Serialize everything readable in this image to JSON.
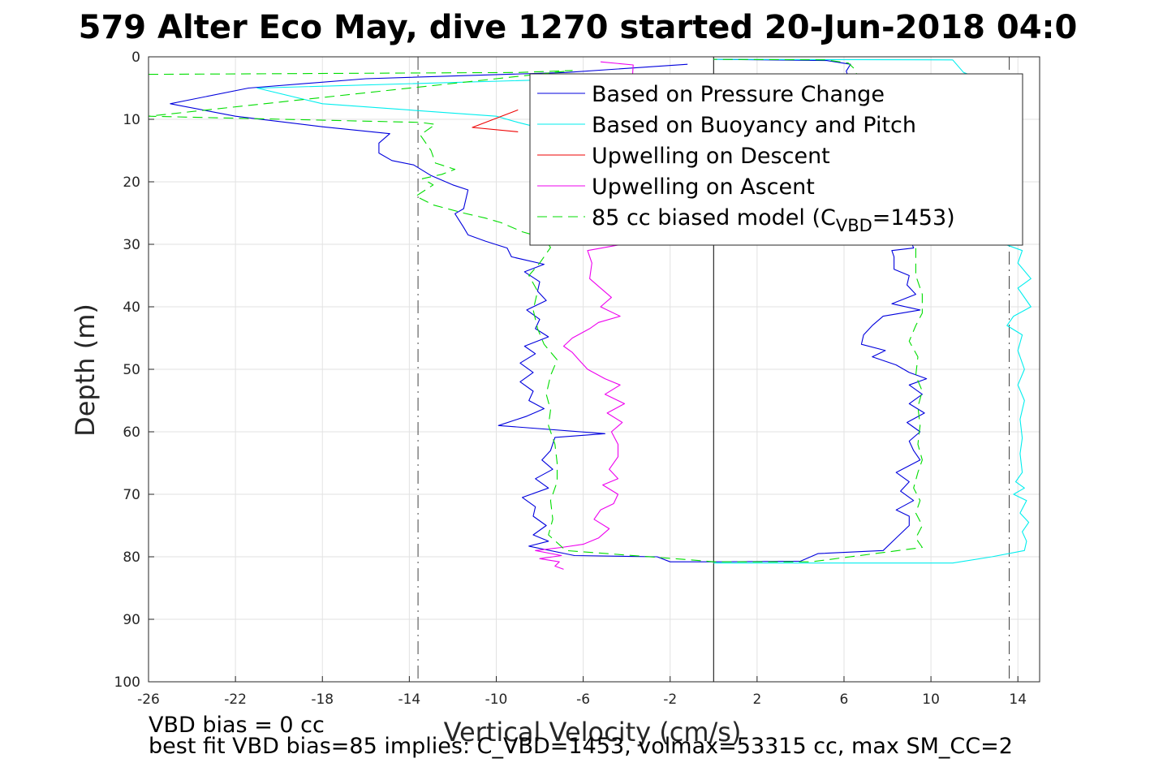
{
  "colors": {
    "pressure": "#0000dd",
    "buoyancy": "#00eeee",
    "descent": "#ee0000",
    "ascent": "#ee00ee",
    "model": "#00dd00",
    "vlines": "#000000"
  },
  "chart_data": {
    "type": "line",
    "title": "579 Alter Eco May, dive 1270 started 20-Jun-2018 04:0",
    "xlabel": "Vertical Velocity (cm/s)",
    "ylabel": "Depth (m)",
    "xlim": [
      -26,
      15
    ],
    "ylim": [
      0,
      100
    ],
    "y_reversed": true,
    "grid": true,
    "legend_position": "top-right",
    "xticks": [
      "-26",
      "-22",
      "-18",
      "-14",
      "-10",
      "-6",
      "-2",
      "2",
      "6",
      "10",
      "14"
    ],
    "xtick_values": [
      -26,
      -22,
      -18,
      -14,
      -10,
      -6,
      -2,
      2,
      6,
      10,
      14
    ],
    "yticks": [
      "0",
      "10",
      "20",
      "30",
      "40",
      "50",
      "60",
      "70",
      "80",
      "90",
      "100"
    ],
    "ytick_values": [
      0,
      10,
      20,
      30,
      40,
      50,
      60,
      70,
      80,
      90,
      100
    ],
    "reference_lines": [
      {
        "x": -13.6,
        "style": "dash-dot"
      },
      {
        "x": 0,
        "style": "solid"
      },
      {
        "x": 13.6,
        "style": "dash-dot"
      }
    ],
    "series": [
      {
        "name": "Based on Pressure Change",
        "color_key": "pressure",
        "style": "solid",
        "points": [
          [
            -1.2,
            1.2
          ],
          [
            -6.8,
            2.5
          ],
          [
            -16,
            3.5
          ],
          [
            -21.4,
            5.0
          ],
          [
            -25,
            7.5
          ],
          [
            -22,
            9.5
          ],
          [
            -18,
            11.2
          ],
          [
            -14.9,
            12.3
          ],
          [
            -15.4,
            13.8
          ],
          [
            -15.4,
            15.4
          ],
          [
            -14.8,
            16.6
          ],
          [
            -13.8,
            17.3
          ],
          [
            -13.0,
            19.0
          ],
          [
            -12.0,
            20.5
          ],
          [
            -11.3,
            21.3
          ],
          [
            -11.5,
            24.3
          ],
          [
            -11.9,
            25.1
          ],
          [
            -11.5,
            27.3
          ],
          [
            -11.3,
            28.5
          ],
          [
            -10.5,
            29.5
          ],
          [
            -9.5,
            30.6
          ],
          [
            -9.3,
            32.0
          ],
          [
            -7.8,
            33.2
          ],
          [
            -8.7,
            34.4
          ],
          [
            -8.0,
            36.0
          ],
          [
            -8.1,
            37.5
          ],
          [
            -7.7,
            39.0
          ],
          [
            -8.6,
            40.5
          ],
          [
            -8.0,
            42.0
          ],
          [
            -8.2,
            43.5
          ],
          [
            -7.6,
            44.8
          ],
          [
            -8.7,
            46.3
          ],
          [
            -8.2,
            47.5
          ],
          [
            -8.9,
            49.0
          ],
          [
            -8.3,
            50.5
          ],
          [
            -8.9,
            52.0
          ],
          [
            -8.3,
            53.5
          ],
          [
            -8.5,
            55.0
          ],
          [
            -7.8,
            56.3
          ],
          [
            -8.6,
            57.5
          ],
          [
            -9.9,
            59.0
          ],
          [
            -5.0,
            60.3
          ],
          [
            -7.3,
            60.9
          ],
          [
            -7.5,
            63.0
          ],
          [
            -7.9,
            64.5
          ],
          [
            -7.4,
            66.0
          ],
          [
            -8.2,
            67.5
          ],
          [
            -7.6,
            69.0
          ],
          [
            -8.8,
            70.5
          ],
          [
            -8.2,
            72.0
          ],
          [
            -8.3,
            73.5
          ],
          [
            -7.7,
            75.0
          ],
          [
            -8.3,
            76.5
          ],
          [
            -7.6,
            77.5
          ],
          [
            -8.5,
            78.3
          ],
          [
            -6.4,
            79.8
          ],
          [
            -2.6,
            80.0
          ],
          [
            -2.0,
            80.8
          ],
          [
            0,
            80.8
          ],
          [
            4.0,
            80.7
          ],
          [
            4.8,
            79.5
          ],
          [
            7.8,
            79.0
          ],
          [
            8.4,
            77.0
          ],
          [
            9.0,
            75.0
          ],
          [
            9.0,
            73.5
          ],
          [
            8.4,
            72.5
          ],
          [
            9.2,
            71.0
          ],
          [
            8.6,
            69.5
          ],
          [
            9.0,
            68.0
          ],
          [
            8.4,
            66.5
          ],
          [
            9.5,
            64.5
          ],
          [
            9.2,
            63.0
          ],
          [
            9.0,
            61.5
          ],
          [
            9.5,
            60.0
          ],
          [
            8.9,
            58.5
          ],
          [
            9.7,
            57.0
          ],
          [
            9.0,
            55.5
          ],
          [
            9.6,
            54.0
          ],
          [
            9.0,
            52.5
          ],
          [
            9.8,
            51.5
          ],
          [
            9.0,
            50.5
          ],
          [
            8.4,
            49.3
          ],
          [
            7.3,
            48.0
          ],
          [
            7.9,
            47.0
          ],
          [
            6.8,
            46.0
          ],
          [
            6.9,
            44.5
          ],
          [
            7.3,
            43.0
          ],
          [
            7.8,
            41.5
          ],
          [
            9.5,
            40.5
          ],
          [
            8.2,
            39.5
          ],
          [
            9.3,
            38.0
          ],
          [
            8.9,
            36.5
          ],
          [
            9.0,
            35.0
          ],
          [
            8.3,
            34.0
          ],
          [
            8.3,
            32.0
          ],
          [
            8.2,
            31.0
          ],
          [
            9.2,
            30.6
          ],
          [
            6.1,
            2.3
          ],
          [
            6.3,
            1.2
          ],
          [
            5.2,
            0.6
          ],
          [
            0,
            0.4
          ]
        ]
      },
      {
        "name": "Based on Buoyancy and Pitch",
        "color_key": "buoyancy",
        "style": "solid",
        "points": [
          [
            0,
            0.4
          ],
          [
            11.0,
            0.5
          ],
          [
            11.5,
            2.5
          ],
          [
            12.5,
            3.8
          ],
          [
            11.0,
            4.5
          ],
          [
            -2,
            4.5
          ],
          [
            -6,
            3.5
          ],
          [
            -21.0,
            5.0
          ],
          [
            -18.0,
            7.5
          ],
          [
            -10.0,
            9.5
          ],
          [
            -9.0,
            10.5
          ],
          [
            13.0,
            29.5
          ],
          [
            14.2,
            31.0
          ],
          [
            14.0,
            33.0
          ],
          [
            14.6,
            35.5
          ],
          [
            14.0,
            37.0
          ],
          [
            14.6,
            40.0
          ],
          [
            13.8,
            41.5
          ],
          [
            13.5,
            43.0
          ],
          [
            14.2,
            44.5
          ],
          [
            14.0,
            47.0
          ],
          [
            14.3,
            50.0
          ],
          [
            14.0,
            52.5
          ],
          [
            14.3,
            55.0
          ],
          [
            14.1,
            58.0
          ],
          [
            14.2,
            61.0
          ],
          [
            14.1,
            63.5
          ],
          [
            14.2,
            66.5
          ],
          [
            13.9,
            68.0
          ],
          [
            14.3,
            69.0
          ],
          [
            13.8,
            70.0
          ],
          [
            14.4,
            71.0
          ],
          [
            14.1,
            73.0
          ],
          [
            14.5,
            74.5
          ],
          [
            14.2,
            76.0
          ],
          [
            14.4,
            77.5
          ],
          [
            14.3,
            79.0
          ],
          [
            12.8,
            80.0
          ],
          [
            11.0,
            81.0
          ],
          [
            6.0,
            81.0
          ],
          [
            0,
            81.0
          ]
        ]
      },
      {
        "name": "Upwelling on Descent",
        "color_key": "descent",
        "style": "solid",
        "points": [
          [
            -9.0,
            8.5
          ],
          [
            -11.1,
            11.3
          ],
          [
            -9.0,
            12.0
          ]
        ]
      },
      {
        "name": "Upwelling on Ascent",
        "color_key": "ascent",
        "style": "solid",
        "points": [
          [
            -5.2,
            0.8
          ],
          [
            -3.7,
            1.3
          ],
          [
            -4.2,
            30.0
          ],
          [
            -5.8,
            31.0
          ],
          [
            -5.6,
            33.0
          ],
          [
            -5.7,
            35.5
          ],
          [
            -5.2,
            37.0
          ],
          [
            -4.7,
            38.5
          ],
          [
            -5.2,
            40.0
          ],
          [
            -4.3,
            41.5
          ],
          [
            -5.3,
            42.5
          ],
          [
            -5.7,
            43.5
          ],
          [
            -6.5,
            45.0
          ],
          [
            -6.9,
            46.3
          ],
          [
            -6.5,
            47.3
          ],
          [
            -6.2,
            48.5
          ],
          [
            -5.8,
            50.0
          ],
          [
            -5.0,
            51.5
          ],
          [
            -4.3,
            52.5
          ],
          [
            -5.0,
            54.0
          ],
          [
            -4.1,
            55.5
          ],
          [
            -4.9,
            57.0
          ],
          [
            -4.2,
            58.5
          ],
          [
            -4.7,
            60.0
          ],
          [
            -4.4,
            62.0
          ],
          [
            -4.4,
            64.0
          ],
          [
            -4.8,
            66.0
          ],
          [
            -4.4,
            67.5
          ],
          [
            -5.1,
            68.5
          ],
          [
            -4.4,
            70.0
          ],
          [
            -4.6,
            71.5
          ],
          [
            -5.2,
            72.5
          ],
          [
            -5.5,
            74.0
          ],
          [
            -4.8,
            75.5
          ],
          [
            -5.3,
            77.0
          ],
          [
            -6.0,
            78.0
          ],
          [
            -7.0,
            78.5
          ],
          [
            -8.2,
            79.0
          ],
          [
            -7.0,
            79.8
          ],
          [
            -8.0,
            80.3
          ],
          [
            -7.1,
            80.8
          ],
          [
            -7.3,
            81.5
          ],
          [
            -6.9,
            82.0
          ]
        ]
      },
      {
        "name": "85 cc biased model (C_VBD=1453)",
        "color_key": "model",
        "style": "dash",
        "points": [
          [
            -26,
            2.8
          ],
          [
            -9.0,
            2.5
          ],
          [
            -6.5,
            2.2
          ],
          [
            -26,
            9.5
          ],
          [
            -13.5,
            10.5
          ],
          [
            -12.8,
            10.8
          ],
          [
            -13.5,
            12.5
          ],
          [
            -13.0,
            15.0
          ],
          [
            -12.8,
            17.0
          ],
          [
            -11.9,
            18.0
          ],
          [
            -12.5,
            18.8
          ],
          [
            -13.4,
            19.5
          ],
          [
            -12.9,
            20.5
          ],
          [
            -13.7,
            22.3
          ],
          [
            -12.9,
            23.7
          ],
          [
            -11.5,
            25.0
          ],
          [
            -10.5,
            25.8
          ],
          [
            -9.8,
            26.5
          ],
          [
            -8.8,
            28.0
          ],
          [
            -7.8,
            29.0
          ],
          [
            -7.5,
            30.5
          ],
          [
            -8.0,
            33.0
          ],
          [
            -8.5,
            35.0
          ],
          [
            -8.1,
            37.5
          ],
          [
            -8.3,
            40.5
          ],
          [
            -8.1,
            43.5
          ],
          [
            -7.8,
            46.0
          ],
          [
            -7.2,
            48.5
          ],
          [
            -7.5,
            51.0
          ],
          [
            -7.7,
            54.0
          ],
          [
            -7.5,
            56.5
          ],
          [
            -7.6,
            59.0
          ],
          [
            -7.3,
            62.0
          ],
          [
            -7.2,
            65.0
          ],
          [
            -7.2,
            68.0
          ],
          [
            -7.5,
            71.0
          ],
          [
            -7.4,
            74.0
          ],
          [
            -7.6,
            76.5
          ],
          [
            -6.8,
            79.0
          ],
          [
            -1.0,
            80.5
          ],
          [
            0,
            80.8
          ],
          [
            4.5,
            80.8
          ],
          [
            9.6,
            78.5
          ],
          [
            9.3,
            77.0
          ],
          [
            9.6,
            75.0
          ],
          [
            9.3,
            73.0
          ],
          [
            9.5,
            71.0
          ],
          [
            9.2,
            69.0
          ],
          [
            9.4,
            66.5
          ],
          [
            9.6,
            64.5
          ],
          [
            9.4,
            62.0
          ],
          [
            9.5,
            59.0
          ],
          [
            9.4,
            56.0
          ],
          [
            9.6,
            53.5
          ],
          [
            9.3,
            51.0
          ],
          [
            9.4,
            48.0
          ],
          [
            9.0,
            45.5
          ],
          [
            9.3,
            43.0
          ],
          [
            9.6,
            41.0
          ],
          [
            9.6,
            38.0
          ],
          [
            9.3,
            35.0
          ],
          [
            9.3,
            32.5
          ],
          [
            9.3,
            30.0
          ],
          [
            6.5,
            2.0
          ],
          [
            6.2,
            1.0
          ],
          [
            5.2,
            0.5
          ],
          [
            0,
            0.4
          ]
        ]
      }
    ],
    "legend_entries": [
      {
        "text": "Based on Pressure Change",
        "color_key": "pressure",
        "style": "solid"
      },
      {
        "text": "Based on Buoyancy and Pitch",
        "color_key": "buoyancy",
        "style": "solid"
      },
      {
        "text": "Upwelling on Descent",
        "color_key": "descent",
        "style": "solid"
      },
      {
        "text": "Upwelling on Ascent",
        "color_key": "ascent",
        "style": "solid"
      },
      {
        "text_main": "85 cc biased model (C",
        "text_sub": "VBD",
        "text_end": "=1453)",
        "color_key": "model",
        "style": "dash"
      }
    ],
    "annotations": [
      "VBD bias = 0 cc",
      "best fit VBD bias=85 implies: C_VBD=1453, volmax=53315 cc, max SM_CC=2"
    ]
  }
}
